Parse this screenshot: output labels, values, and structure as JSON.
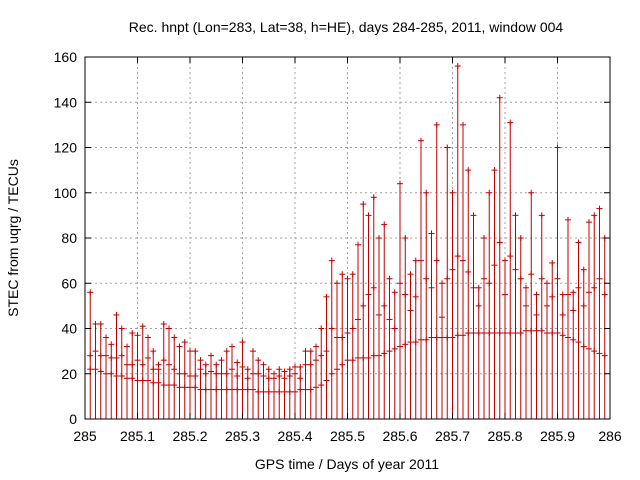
{
  "chart_data": {
    "type": "scatter",
    "title": "Rec. hnpt (Lon=283, Lat=38, h=HE), days 284-285, 2011, window 004",
    "xlabel": "GPS time / Days of year 2011",
    "ylabel": "STEC from uqrg / TECUs",
    "xlim": [
      285,
      286
    ],
    "ylim": [
      0,
      160
    ],
    "xticks": [
      285,
      285.1,
      285.2,
      285.3,
      285.4,
      285.5,
      285.6,
      285.7,
      285.8,
      285.9,
      286
    ],
    "xtick_labels": [
      "285",
      "285.1",
      "285.2",
      "285.3",
      "285.4",
      "285.5",
      "285.6",
      "285.7",
      "285.8",
      "285.9",
      "286"
    ],
    "yticks": [
      0,
      20,
      40,
      60,
      80,
      100,
      120,
      140,
      160
    ],
    "ytick_labels": [
      "0",
      "20",
      "40",
      "60",
      "80",
      "100",
      "120",
      "140",
      "160"
    ],
    "grid": true,
    "series": [
      {
        "color": "#c00000",
        "marker": "plus",
        "x": [
          285.01,
          285.02,
          285.03,
          285.04,
          285.05,
          285.06,
          285.07,
          285.08,
          285.09,
          285.1,
          285.11,
          285.12,
          285.13,
          285.14,
          285.15,
          285.16,
          285.17,
          285.18,
          285.19,
          285.2,
          285.21,
          285.22,
          285.23,
          285.24,
          285.25,
          285.26,
          285.27,
          285.28,
          285.29,
          285.3,
          285.31,
          285.32,
          285.33,
          285.34,
          285.35,
          285.36,
          285.37,
          285.38,
          285.39,
          285.4,
          285.41,
          285.42,
          285.43,
          285.44,
          285.45,
          285.46,
          285.47,
          285.48,
          285.49,
          285.5,
          285.51,
          285.52,
          285.53,
          285.54,
          285.55,
          285.56,
          285.57,
          285.58,
          285.59,
          285.6,
          285.61,
          285.62,
          285.63,
          285.64,
          285.65,
          285.66,
          285.67,
          285.68,
          285.69,
          285.7,
          285.71,
          285.72,
          285.73,
          285.74,
          285.75,
          285.76,
          285.77,
          285.78,
          285.79,
          285.8,
          285.81,
          285.82,
          285.83,
          285.84,
          285.85,
          285.86,
          285.87,
          285.88,
          285.89,
          285.9,
          285.91,
          285.92,
          285.93,
          285.94,
          285.95,
          285.96,
          285.97,
          285.98,
          285.99
        ],
        "y": [
          56,
          42,
          42,
          36,
          33,
          46,
          40,
          32,
          38,
          37,
          41,
          36,
          30,
          24,
          42,
          40,
          36,
          32,
          34,
          30,
          30,
          26,
          24,
          28,
          24,
          26,
          30,
          32,
          25,
          34,
          22,
          30,
          26,
          24,
          22,
          20,
          22,
          21,
          22,
          23,
          23,
          30,
          30,
          32,
          40,
          54,
          70,
          60,
          64,
          62,
          64,
          77,
          95,
          90,
          98,
          80,
          86,
          62,
          56,
          104,
          80,
          64,
          70,
          123,
          100,
          82,
          130,
          60,
          120,
          100,
          156,
          130,
          110,
          90,
          58,
          80,
          100,
          110,
          142,
          70,
          131,
          90,
          80,
          58,
          100,
          55,
          90,
          60,
          69,
          120,
          55,
          88,
          56,
          78,
          66,
          87,
          90,
          93,
          80
        ]
      },
      {
        "color": "#c00000",
        "marker": "plus",
        "x": [
          285.01,
          285.02,
          285.03,
          285.04,
          285.05,
          285.06,
          285.07,
          285.08,
          285.09,
          285.1,
          285.11,
          285.12,
          285.13,
          285.14,
          285.15,
          285.16,
          285.17,
          285.18,
          285.19,
          285.2,
          285.21,
          285.22,
          285.23,
          285.24,
          285.25,
          285.26,
          285.27,
          285.28,
          285.29,
          285.3,
          285.31,
          285.32,
          285.33,
          285.34,
          285.35,
          285.36,
          285.37,
          285.38,
          285.39,
          285.4,
          285.41,
          285.42,
          285.43,
          285.44,
          285.45,
          285.46,
          285.47,
          285.48,
          285.49,
          285.5,
          285.51,
          285.52,
          285.53,
          285.54,
          285.55,
          285.56,
          285.57,
          285.58,
          285.59,
          285.6,
          285.61,
          285.62,
          285.63,
          285.64,
          285.65,
          285.66,
          285.67,
          285.68,
          285.69,
          285.7,
          285.71,
          285.72,
          285.73,
          285.74,
          285.75,
          285.76,
          285.77,
          285.78,
          285.79,
          285.8,
          285.81,
          285.82,
          285.83,
          285.84,
          285.85,
          285.86,
          285.87,
          285.88,
          285.89,
          285.9,
          285.91,
          285.92,
          285.93,
          285.94,
          285.95,
          285.96,
          285.97,
          285.98,
          285.99
        ],
        "y": [
          28,
          30,
          28,
          28,
          27,
          27,
          28,
          24,
          24,
          26,
          24,
          27,
          22,
          22,
          26,
          24,
          22,
          20,
          20,
          19,
          19,
          22,
          20,
          21,
          20,
          20,
          20,
          22,
          19,
          23,
          18,
          20,
          20,
          19,
          18,
          18,
          19,
          18,
          19,
          20,
          18,
          24,
          24,
          26,
          28,
          30,
          40,
          36,
          36,
          38,
          40,
          44,
          50,
          55,
          58,
          46,
          50,
          44,
          40,
          60,
          55,
          48,
          54,
          70,
          62,
          58,
          70,
          45,
          62,
          66,
          72,
          70,
          65,
          58,
          50,
          62,
          60,
          68,
          78,
          55,
          72,
          66,
          62,
          50,
          64,
          46,
          62,
          50,
          54,
          62,
          46,
          55,
          48,
          58,
          50,
          56,
          58,
          62,
          55
        ]
      },
      {
        "color": "#c00000",
        "marker": "plus",
        "x": [
          285.01,
          285.02,
          285.03,
          285.04,
          285.05,
          285.06,
          285.07,
          285.08,
          285.09,
          285.1,
          285.11,
          285.12,
          285.13,
          285.14,
          285.15,
          285.16,
          285.17,
          285.18,
          285.19,
          285.2,
          285.21,
          285.22,
          285.23,
          285.24,
          285.25,
          285.26,
          285.27,
          285.28,
          285.29,
          285.3,
          285.31,
          285.32,
          285.33,
          285.34,
          285.35,
          285.36,
          285.37,
          285.38,
          285.39,
          285.4,
          285.41,
          285.42,
          285.43,
          285.44,
          285.45,
          285.46,
          285.47,
          285.48,
          285.49,
          285.5,
          285.51,
          285.52,
          285.53,
          285.54,
          285.55,
          285.56,
          285.57,
          285.58,
          285.59,
          285.6,
          285.61,
          285.62,
          285.63,
          285.64,
          285.65,
          285.66,
          285.67,
          285.68,
          285.69,
          285.7,
          285.71,
          285.72,
          285.73,
          285.74,
          285.75,
          285.76,
          285.77,
          285.78,
          285.79,
          285.8,
          285.81,
          285.82,
          285.83,
          285.84,
          285.85,
          285.86,
          285.87,
          285.88,
          285.89,
          285.9,
          285.91,
          285.92,
          285.93,
          285.94,
          285.95,
          285.96,
          285.97,
          285.98,
          285.99
        ],
        "y": [
          22,
          22,
          21,
          20,
          20,
          19,
          19,
          18,
          18,
          17,
          17,
          17,
          16,
          16,
          15,
          15,
          15,
          14,
          14,
          14,
          14,
          13,
          13,
          13,
          13,
          13,
          13,
          13,
          13,
          13,
          13,
          13,
          12,
          12,
          12,
          12,
          12,
          12,
          12,
          12,
          13,
          13,
          13,
          14,
          15,
          17,
          20,
          22,
          24,
          26,
          26,
          27,
          27,
          27,
          28,
          28,
          29,
          30,
          31,
          32,
          33,
          34,
          34,
          35,
          35,
          36,
          36,
          36,
          36,
          36,
          37,
          37,
          38,
          38,
          38,
          38,
          38,
          38,
          38,
          38,
          38,
          38,
          38,
          39,
          39,
          39,
          39,
          38,
          38,
          38,
          37,
          36,
          35,
          34,
          32,
          31,
          30,
          29,
          28
        ]
      }
    ]
  }
}
